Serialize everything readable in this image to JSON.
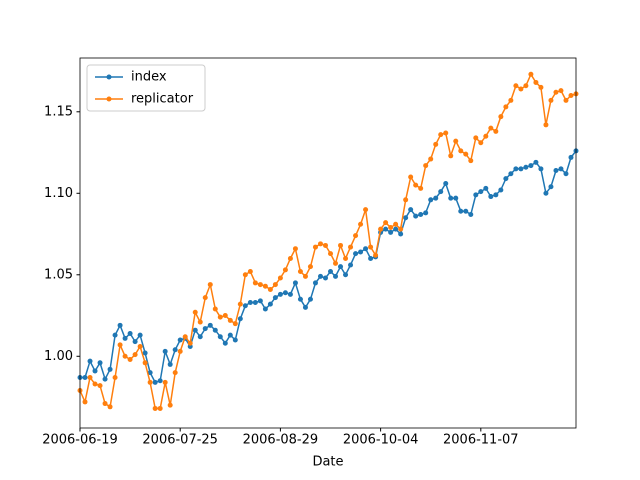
{
  "chart_data": {
    "type": "line",
    "xlabel": "Date",
    "xlim": [
      0,
      99
    ],
    "xticks": [
      {
        "value": 0,
        "label": "2006-06-19"
      },
      {
        "value": 20,
        "label": "2006-07-25"
      },
      {
        "value": 40,
        "label": "2006-08-29"
      },
      {
        "value": 60,
        "label": "2006-10-04"
      },
      {
        "value": 80,
        "label": "2006-11-07"
      }
    ],
    "ylim": [
      0.956,
      1.183
    ],
    "yticks": [
      {
        "value": 1.0,
        "label": "1.00"
      },
      {
        "value": 1.05,
        "label": "1.05"
      },
      {
        "value": 1.1,
        "label": "1.10"
      },
      {
        "value": 1.15,
        "label": "1.15"
      }
    ],
    "legend": "upper left",
    "series": [
      {
        "name": "index",
        "color": "#1f77b4",
        "values": [
          0.987,
          0.987,
          0.997,
          0.991,
          0.996,
          0.986,
          0.992,
          1.013,
          1.019,
          1.011,
          1.014,
          1.009,
          1.013,
          1.002,
          0.99,
          0.984,
          0.985,
          1.003,
          0.995,
          1.004,
          1.01,
          1.011,
          1.006,
          1.016,
          1.012,
          1.017,
          1.019,
          1.016,
          1.012,
          1.008,
          1.013,
          1.01,
          1.023,
          1.031,
          1.033,
          1.033,
          1.034,
          1.029,
          1.032,
          1.036,
          1.038,
          1.039,
          1.038,
          1.045,
          1.035,
          1.03,
          1.035,
          1.045,
          1.049,
          1.048,
          1.052,
          1.049,
          1.055,
          1.05,
          1.056,
          1.063,
          1.064,
          1.066,
          1.06,
          1.061,
          1.076,
          1.078,
          1.076,
          1.078,
          1.075,
          1.085,
          1.09,
          1.086,
          1.087,
          1.088,
          1.096,
          1.097,
          1.101,
          1.106,
          1.097,
          1.097,
          1.089,
          1.089,
          1.087,
          1.099,
          1.101,
          1.103,
          1.098,
          1.099,
          1.102,
          1.109,
          1.112,
          1.115,
          1.115,
          1.116,
          1.117,
          1.119,
          1.115,
          1.1,
          1.104,
          1.114,
          1.115,
          1.112,
          1.122,
          1.126
        ]
      },
      {
        "name": "replicator",
        "color": "#ff7f0e",
        "values": [
          0.979,
          0.972,
          0.987,
          0.983,
          0.982,
          0.971,
          0.969,
          0.987,
          1.007,
          1.0,
          0.998,
          1.001,
          1.006,
          0.996,
          0.984,
          0.968,
          0.968,
          0.984,
          0.97,
          0.99,
          1.003,
          1.012,
          1.008,
          1.027,
          1.021,
          1.036,
          1.044,
          1.029,
          1.024,
          1.025,
          1.022,
          1.02,
          1.032,
          1.05,
          1.052,
          1.045,
          1.044,
          1.043,
          1.041,
          1.044,
          1.048,
          1.053,
          1.06,
          1.066,
          1.052,
          1.049,
          1.055,
          1.067,
          1.069,
          1.068,
          1.063,
          1.057,
          1.068,
          1.06,
          1.067,
          1.074,
          1.081,
          1.09,
          1.067,
          1.062,
          1.078,
          1.082,
          1.079,
          1.081,
          1.078,
          1.096,
          1.11,
          1.105,
          1.103,
          1.117,
          1.121,
          1.13,
          1.136,
          1.137,
          1.123,
          1.132,
          1.126,
          1.124,
          1.12,
          1.134,
          1.131,
          1.135,
          1.14,
          1.138,
          1.147,
          1.153,
          1.157,
          1.166,
          1.164,
          1.166,
          1.173,
          1.168,
          1.165,
          1.142,
          1.157,
          1.162,
          1.163,
          1.157,
          1.16,
          1.161
        ]
      }
    ]
  }
}
